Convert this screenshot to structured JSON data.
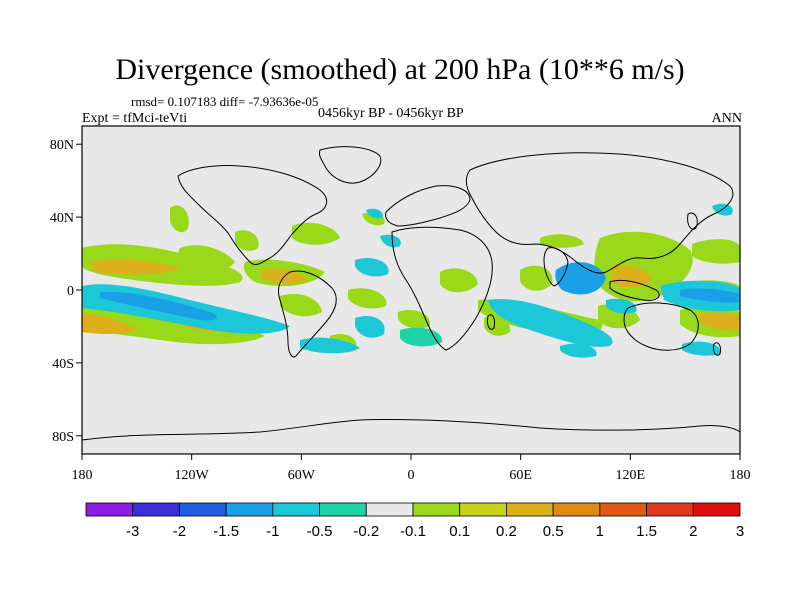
{
  "header": {
    "title": "Divergence (smoothed) at 200 hPa (10**6 m/s)",
    "stats": "rmsd= 0.107183 diff= -7.93636e-05",
    "experiment": "Expt = tfMci-teVti",
    "period": "0456kyr BP - 0456kyr BP",
    "season": "ANN"
  },
  "map": {
    "background_color": "#e8e8e8",
    "lon_ticks": [
      "180",
      "120W",
      "60W",
      "0",
      "60E",
      "120E",
      "180"
    ],
    "lat_ticks": [
      "80N",
      "40N",
      "0",
      "40S",
      "80S"
    ]
  },
  "colorbar": {
    "colors": [
      "#8a1fe0",
      "#3a2fd6",
      "#1d5fe0",
      "#1aa0e6",
      "#1cc8d8",
      "#1fd3a8",
      "#e8e8e8",
      "#9ad81a",
      "#c8d41a",
      "#dcb01a",
      "#e08a16",
      "#e35a14",
      "#e0381a",
      "#e01010"
    ],
    "labels": [
      "-3",
      "-2",
      "-1.5",
      "-1",
      "-0.5",
      "-0.2",
      "-0.1",
      "0.1",
      "0.2",
      "0.5",
      "1",
      "1.5",
      "2",
      "3"
    ]
  }
}
